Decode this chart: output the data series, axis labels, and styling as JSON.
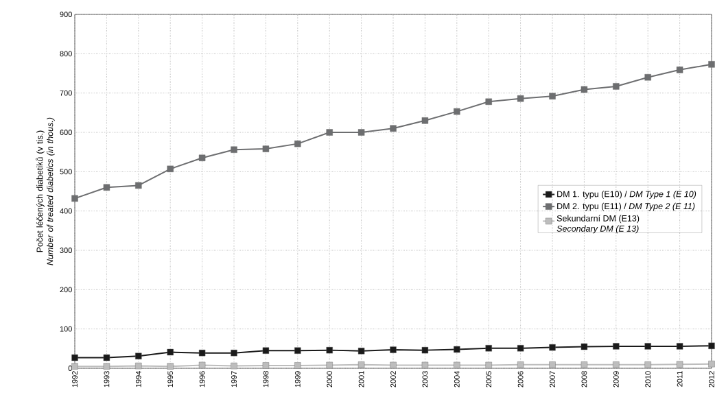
{
  "chart_data": {
    "type": "line",
    "ylabel": "Počet léčených diabetiků (v tis.) *Number of treated diabetics (in thous.)*",
    "x": [
      1992,
      1993,
      1994,
      1995,
      1996,
      1997,
      1998,
      1999,
      2000,
      2001,
      2002,
      2003,
      2004,
      2005,
      2006,
      2007,
      2008,
      2009,
      2010,
      2011,
      2012
    ],
    "series": [
      {
        "name": "DM 1. typu (E10) / *DM Type 1 (E 10)*",
        "color": "#1a1a1a",
        "values": [
          27,
          27,
          31,
          41,
          39,
          39,
          45,
          45,
          46,
          44,
          47,
          46,
          48,
          51,
          51,
          53,
          55,
          56,
          56,
          56,
          57
        ]
      },
      {
        "name": "DM 2. typu (E11) / *DM Type 2 (E 11)*",
        "color": "#6d6e70",
        "values": [
          432,
          460,
          465,
          507,
          535,
          556,
          558,
          571,
          600,
          600,
          610,
          630,
          653,
          678,
          686,
          692,
          709,
          717,
          740,
          759,
          773
        ]
      },
      {
        "name": "Sekundarní DM (E13) *Secondary DM (E 13)*",
        "color": "#bdbdbd",
        "values": [
          5,
          5,
          6,
          5,
          8,
          6,
          7,
          7,
          8,
          9,
          8,
          8,
          8,
          8,
          9,
          9,
          9,
          9,
          9,
          10,
          11
        ]
      }
    ],
    "xlim": [
      1992,
      2012
    ],
    "xticks": [
      1992,
      1993,
      1994,
      1995,
      1996,
      1997,
      1998,
      1999,
      2000,
      2001,
      2002,
      2003,
      2004,
      2005,
      2006,
      2007,
      2008,
      2009,
      2010,
      2011,
      2012
    ],
    "ylim": [
      0,
      900
    ],
    "yticks": [
      0,
      100,
      200,
      300,
      400,
      500,
      600,
      700,
      800,
      900
    ],
    "grid": true,
    "legend": "right",
    "marker": "square",
    "line_style": "solid"
  }
}
